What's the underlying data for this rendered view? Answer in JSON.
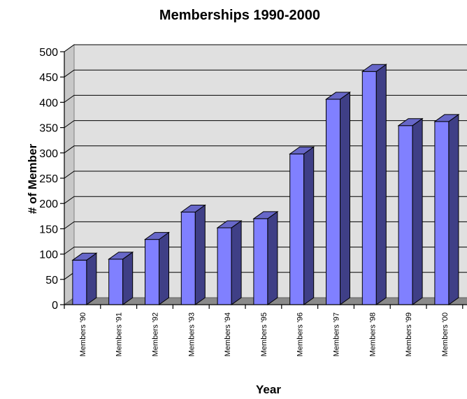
{
  "chart_data": {
    "type": "bar",
    "title": "Memberships 1990-2000",
    "xlabel": "Year",
    "ylabel": "# of Member",
    "categories": [
      "Members '90",
      "Members '91",
      "Members '92",
      "Members '93",
      "Members '94",
      "Members '95",
      "Members '96",
      "Members '97",
      "Members '98",
      "Members '99",
      "Members '00"
    ],
    "values": [
      88,
      90,
      129,
      183,
      152,
      170,
      298,
      406,
      461,
      354,
      362
    ],
    "ylim": [
      0,
      500
    ],
    "yticks": [
      0,
      50,
      100,
      150,
      200,
      250,
      300,
      350,
      400,
      450,
      500
    ],
    "grid": true,
    "legend": "none",
    "three_d": true,
    "colors": {
      "bar_front": "#8080ff",
      "bar_side": "#3f3f86",
      "bar_top": "#6767c8",
      "wall": "#e0e0e0",
      "floor": "#8a8a8a",
      "gridline": "#000000"
    }
  }
}
